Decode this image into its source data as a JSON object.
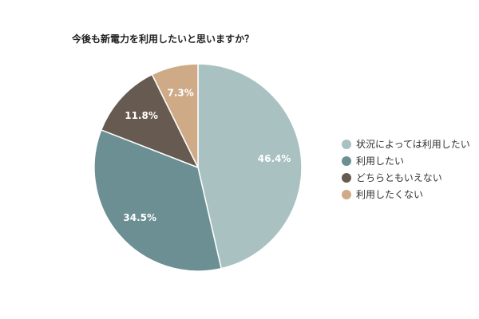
{
  "chart_data": {
    "type": "pie",
    "title": "今後も新電力を利用したいと思いますか？",
    "categories": [
      "状況によっては利用したい",
      "利用したい",
      "どちらともいえない",
      "利用したくない"
    ],
    "values": [
      46.4,
      34.5,
      11.8,
      7.3
    ],
    "data_labels": [
      "46.4%",
      "34.5%",
      "11.8%",
      "7.3%"
    ],
    "colors": [
      "#a9c1c1",
      "#6c8f94",
      "#675a50",
      "#cfaa86"
    ],
    "legend_position": "right"
  }
}
